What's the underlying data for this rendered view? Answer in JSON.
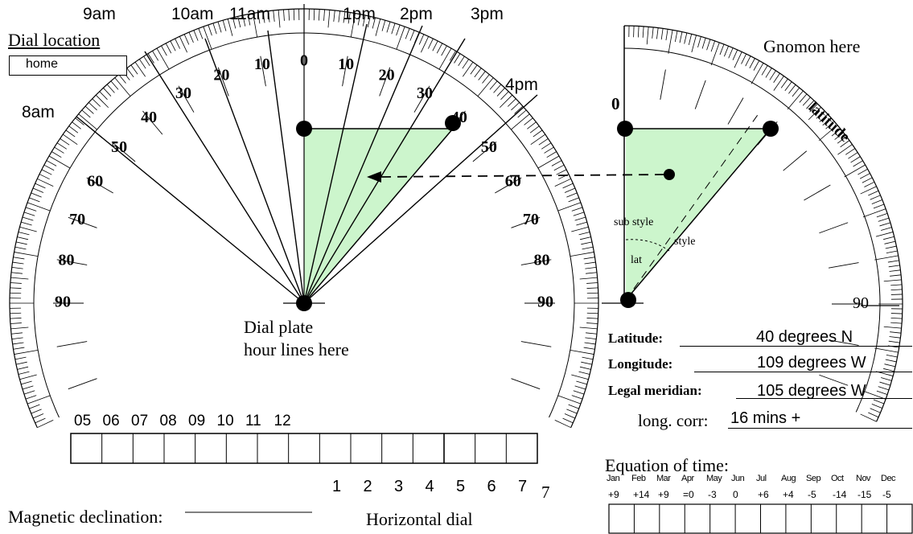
{
  "hour_labels": {
    "h9": "9am",
    "h10": "10am",
    "h11": "11am",
    "h13": "1pm",
    "h14": "2pm",
    "h15": "3pm",
    "h16": "4pm",
    "h8": "8am"
  },
  "dial_location": {
    "label": "Dial location",
    "value": "home"
  },
  "gnomon_label": "Gnomon here",
  "latitude_arc_label": "latitude",
  "dial_plate_label": [
    "Dial plate",
    "hour lines here"
  ],
  "gnomon_angles": {
    "sub_style": "sub style",
    "style": "style",
    "lat": "lat"
  },
  "protractor_left": {
    "left_side_labels": [
      "10",
      "20",
      "30",
      "40",
      "50",
      "60",
      "70",
      "80",
      "90"
    ],
    "right_side_labels": [
      "0",
      "10",
      "20",
      "30",
      "40",
      "50",
      "60",
      "70",
      "80",
      "90"
    ]
  },
  "protractor_right": {
    "top_label": "0",
    "bottom_label": "90"
  },
  "fields": {
    "latitude": {
      "label": "Latitude:",
      "value": "40 degrees N"
    },
    "longitude": {
      "label": "Longitude:",
      "value": "109 degrees W"
    },
    "legal_meridian": {
      "label": "Legal meridian:",
      "value": "105 degrees W"
    },
    "long_corr": {
      "label": "long. corr:",
      "value": "16 mins +"
    }
  },
  "hour_table": {
    "top_labels": [
      "05",
      "06",
      "07",
      "08",
      "09",
      "10",
      "11",
      "12"
    ],
    "bottom_labels": [
      "1",
      "2",
      "3",
      "4",
      "5",
      "6",
      "7"
    ],
    "extra_label": "7"
  },
  "equation_of_time": {
    "title": "Equation of time:",
    "months": [
      "Jan",
      "Feb",
      "Mar",
      "Apr",
      "May",
      "Jun",
      "Jul",
      "Aug",
      "Sep",
      "Oct",
      "Nov",
      "Dec"
    ],
    "values": [
      "+9",
      "+14",
      "+9",
      "=0",
      "-3",
      "0",
      "+6",
      "+4",
      "-5",
      "-14",
      "-15",
      "-5"
    ]
  },
  "magnetic_declination_label": "Magnetic declination:",
  "dial_type": "Horizontal dial",
  "colors": {
    "triangle_fill": "#ccf5cc",
    "line": "#000000"
  }
}
